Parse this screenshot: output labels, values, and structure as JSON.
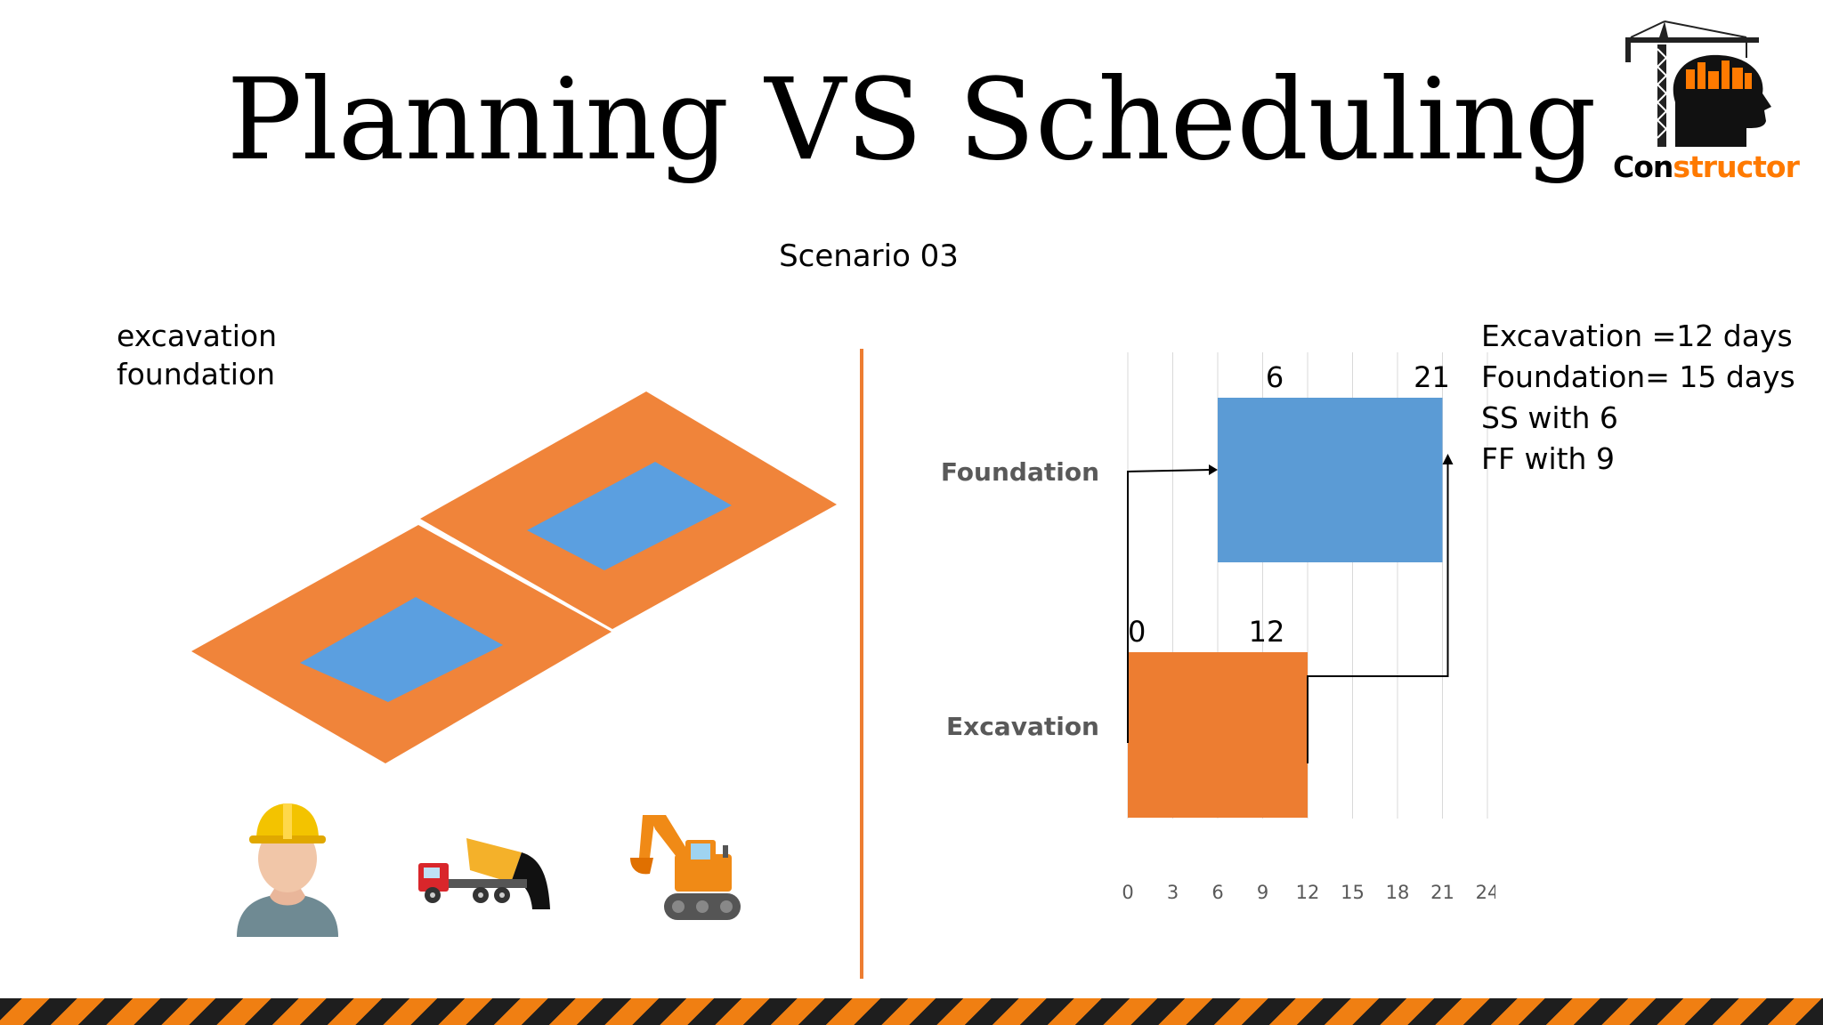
{
  "title": "Planning VS Scheduling",
  "subtitle": "Scenario 03",
  "activities_list": [
    "excavation",
    "foundation"
  ],
  "facts": [
    "Excavation =12 days",
    "Foundation= 15 days",
    "SS with 6",
    "FF with 9"
  ],
  "logo": {
    "text_dark": "Con",
    "text_orange": "structor",
    "icon": "crane-head-logo-icon"
  },
  "icons": [
    "worker-icon",
    "dump-truck-icon",
    "excavator-icon"
  ],
  "colors": {
    "excavation": "#ed7d31",
    "foundation": "#5b9bd5",
    "divider": "#ed7d31",
    "stripe_dark": "#1e1e1e",
    "stripe_orange": "#f07f12"
  },
  "chart_data": {
    "type": "gantt",
    "x_ticks": [
      0,
      3,
      6,
      9,
      12,
      15,
      18,
      21,
      24
    ],
    "xlim": [
      0,
      24
    ],
    "grid": true,
    "categories": [
      "Foundation",
      "Excavation"
    ],
    "bars": [
      {
        "name": "Foundation",
        "start": 6,
        "end": 21,
        "start_label": "6",
        "end_label": "21"
      },
      {
        "name": "Excavation",
        "start": 0,
        "end": 12,
        "start_label": "0",
        "end_label": "12"
      }
    ],
    "links": [
      {
        "type": "SS",
        "from": "Excavation",
        "to": "Foundation",
        "lag": 6
      },
      {
        "type": "FF",
        "from": "Excavation",
        "to": "Foundation",
        "lag": 9
      }
    ]
  }
}
